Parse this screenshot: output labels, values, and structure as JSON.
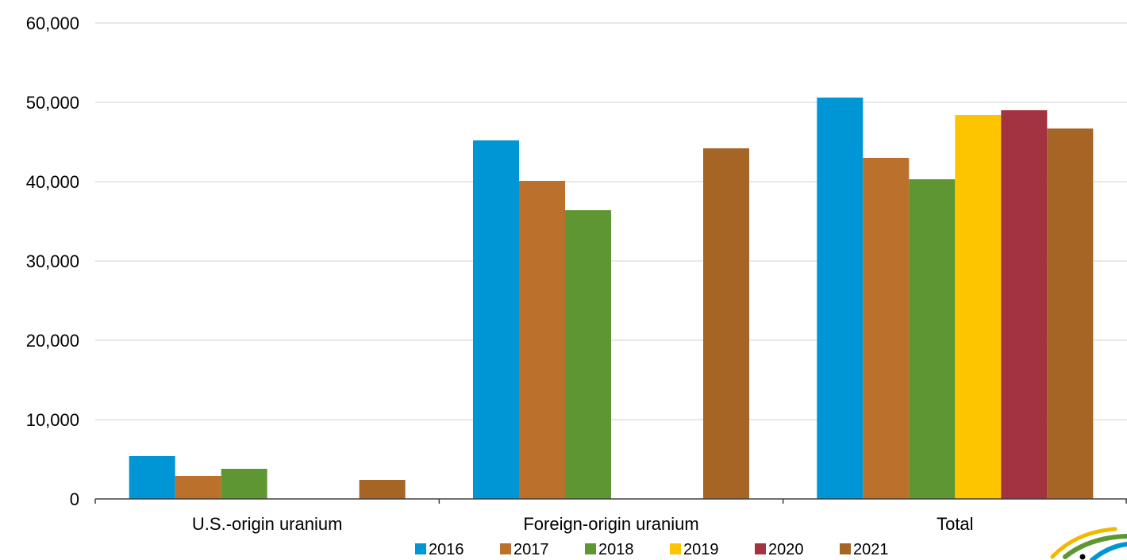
{
  "chart_data": {
    "type": "bar",
    "categories": [
      "U.S.-origin uranium",
      "Foreign-origin uranium",
      "Total"
    ],
    "series": [
      {
        "name": "2016",
        "color": "#0096D6",
        "values": [
          5400,
          45200,
          50600
        ]
      },
      {
        "name": "2017",
        "color": "#BB712C",
        "values": [
          2900,
          40100,
          43000
        ]
      },
      {
        "name": "2018",
        "color": "#5E9732",
        "values": [
          3800,
          36400,
          40300
        ]
      },
      {
        "name": "2019",
        "color": "#FDC500",
        "values": [
          null,
          null,
          48400
        ]
      },
      {
        "name": "2020",
        "color": "#A33340",
        "values": [
          null,
          null,
          49000
        ]
      },
      {
        "name": "2021",
        "color": "#A66524",
        "values": [
          2400,
          44200,
          46700
        ]
      }
    ],
    "ylim": [
      0,
      60000
    ],
    "yticks": [
      0,
      10000,
      20000,
      30000,
      40000,
      50000,
      60000
    ],
    "ytick_labels": [
      "0",
      "10,000",
      "20,000",
      "30,000",
      "40,000",
      "50,000",
      "60,000"
    ],
    "grid": true,
    "legend_position": "bottom"
  },
  "colors": {
    "grid": "#E0E0E0",
    "axis": "#404040",
    "logo_yellow": "#F2B800",
    "logo_green": "#5E9732",
    "logo_blue": "#0096D6"
  }
}
